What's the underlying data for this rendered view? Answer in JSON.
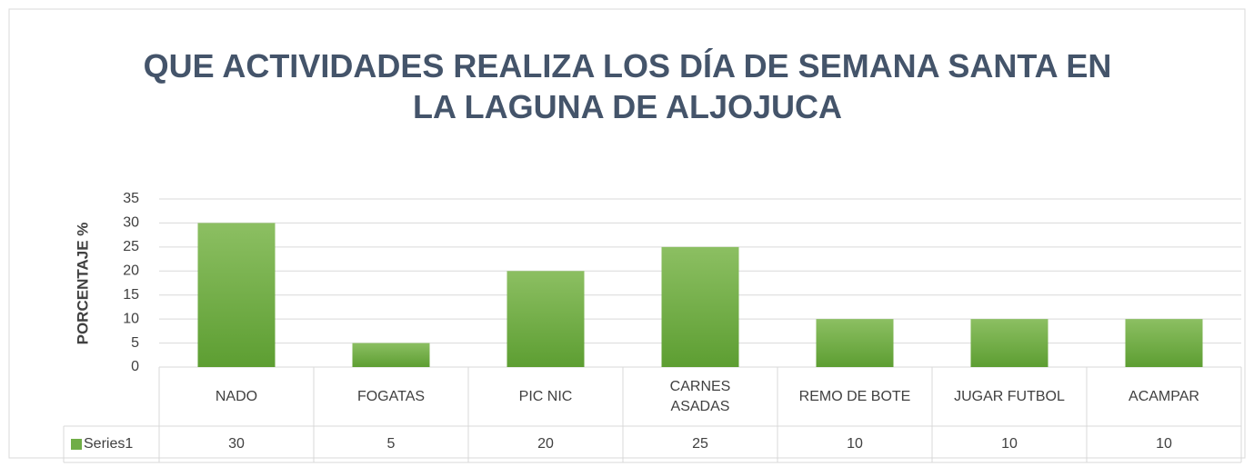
{
  "chart_data": {
    "type": "bar",
    "title": "QUE ACTIVIDADES REALIZA LOS DÍA DE SEMANA SANTA EN\nLA LAGUNA DE ALJOJUCA",
    "y_label": "PORCENTAJE %",
    "categories": [
      "NADO",
      "FOGATAS",
      "PIC NIC",
      "CARNES\nASADAS",
      "REMO DE BOTE",
      "JUGAR FUTBOL",
      "ACAMPAR"
    ],
    "series": [
      {
        "name": "Series1",
        "color": "#70ad47",
        "values": [
          30,
          5,
          20,
          25,
          10,
          10,
          10
        ]
      }
    ],
    "ylim": [
      0,
      35
    ],
    "yticks": [
      0,
      5,
      10,
      15,
      20,
      25,
      30,
      35
    ],
    "grid": true,
    "data_table": true
  }
}
